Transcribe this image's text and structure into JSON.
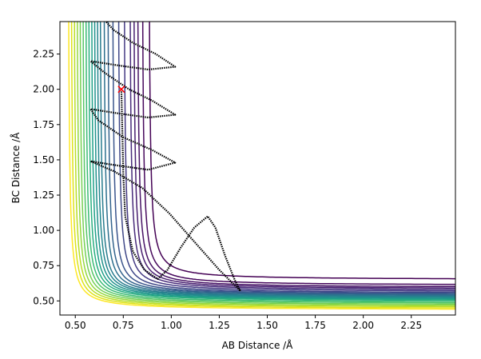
{
  "chart_data": {
    "type": "contour",
    "title": "",
    "xlabel": "AB Distance /Å",
    "ylabel": "BC Distance /Å",
    "xlim": [
      0.42,
      2.48
    ],
    "ylim": [
      0.4,
      2.48
    ],
    "xticks": [
      0.5,
      0.75,
      1.0,
      1.25,
      1.5,
      1.75,
      2.0,
      2.25
    ],
    "xtick_labels": [
      "0.50",
      "0.75",
      "1.00",
      "1.25",
      "1.50",
      "1.75",
      "2.00",
      "2.25"
    ],
    "yticks": [
      0.5,
      0.75,
      1.0,
      1.25,
      1.5,
      1.75,
      2.0,
      2.25
    ],
    "ytick_labels": [
      "0.50",
      "0.75",
      "1.00",
      "1.25",
      "1.50",
      "1.75",
      "2.00",
      "2.25"
    ],
    "contours": [
      {
        "name": "level-01",
        "color": "#440154",
        "xa": 0.88,
        "ya": 0.65
      },
      {
        "name": "level-02",
        "color": "#46085c",
        "xa": 0.845,
        "ya": 0.61
      },
      {
        "name": "level-03",
        "color": "#471365",
        "xa": 0.82,
        "ya": 0.595
      },
      {
        "name": "level-04",
        "color": "#481f70",
        "xa": 0.8,
        "ya": 0.585
      },
      {
        "name": "level-05",
        "color": "#472a7a",
        "xa": 0.78,
        "ya": 0.575
      },
      {
        "name": "level-06",
        "color": "#443983",
        "xa": 0.75,
        "ya": 0.565
      },
      {
        "name": "level-07",
        "color": "#3f4788",
        "xa": 0.72,
        "ya": 0.555
      },
      {
        "name": "level-08",
        "color": "#3a548c",
        "xa": 0.69,
        "ya": 0.547
      },
      {
        "name": "level-09",
        "color": "#33638d",
        "xa": 0.665,
        "ya": 0.54
      },
      {
        "name": "level-10",
        "color": "#2d708e",
        "xa": 0.645,
        "ya": 0.533
      },
      {
        "name": "level-11",
        "color": "#287c8e",
        "xa": 0.625,
        "ya": 0.526
      },
      {
        "name": "level-12",
        "color": "#24868e",
        "xa": 0.61,
        "ya": 0.52
      },
      {
        "name": "level-13",
        "color": "#20928c",
        "xa": 0.595,
        "ya": 0.513
      },
      {
        "name": "level-14",
        "color": "#1fa088",
        "xa": 0.58,
        "ya": 0.506
      },
      {
        "name": "level-15",
        "color": "#28ae80",
        "xa": 0.565,
        "ya": 0.499
      },
      {
        "name": "level-16",
        "color": "#3bbb75",
        "xa": 0.55,
        "ya": 0.49
      },
      {
        "name": "level-17",
        "color": "#56c667",
        "xa": 0.535,
        "ya": 0.481
      },
      {
        "name": "level-18",
        "color": "#75d054",
        "xa": 0.52,
        "ya": 0.472
      },
      {
        "name": "level-19",
        "color": "#95d840",
        "xa": 0.505,
        "ya": 0.463
      },
      {
        "name": "level-20",
        "color": "#bade28",
        "xa": 0.49,
        "ya": 0.454
      },
      {
        "name": "level-21",
        "color": "#dde318",
        "xa": 0.475,
        "ya": 0.445
      },
      {
        "name": "level-22",
        "color": "#fde725",
        "xa": 0.46,
        "ya": 0.436
      }
    ],
    "trajectory": {
      "color": "#000000",
      "start_marker": {
        "symbol": "x",
        "color": "#ff0000",
        "x": 0.74,
        "y": 2.0
      },
      "points": [
        [
          0.74,
          2.0
        ],
        [
          0.745,
          1.7
        ],
        [
          0.75,
          1.4
        ],
        [
          0.76,
          1.1
        ],
        [
          0.8,
          0.85
        ],
        [
          0.86,
          0.72
        ],
        [
          0.93,
          0.655
        ],
        [
          0.98,
          0.72
        ],
        [
          1.05,
          0.88
        ],
        [
          1.12,
          1.02
        ],
        [
          1.19,
          1.1
        ],
        [
          1.23,
          1.02
        ],
        [
          1.28,
          0.82
        ],
        [
          1.33,
          0.65
        ],
        [
          1.36,
          0.57
        ],
        [
          1.25,
          0.72
        ],
        [
          1.12,
          0.92
        ],
        [
          0.99,
          1.12
        ],
        [
          0.85,
          1.3
        ],
        [
          0.7,
          1.42
        ],
        [
          0.58,
          1.49
        ],
        [
          0.72,
          1.46
        ],
        [
          0.88,
          1.43
        ],
        [
          1.02,
          1.48
        ],
        [
          0.9,
          1.57
        ],
        [
          0.75,
          1.66
        ],
        [
          0.62,
          1.78
        ],
        [
          0.58,
          1.86
        ],
        [
          0.72,
          1.83
        ],
        [
          0.88,
          1.8
        ],
        [
          1.02,
          1.82
        ],
        [
          0.9,
          1.92
        ],
        [
          0.78,
          2.0
        ],
        [
          0.65,
          2.12
        ],
        [
          0.58,
          2.2
        ],
        [
          0.72,
          2.17
        ],
        [
          0.88,
          2.14
        ],
        [
          1.02,
          2.16
        ],
        [
          0.92,
          2.25
        ],
        [
          0.8,
          2.33
        ],
        [
          0.7,
          2.42
        ],
        [
          0.66,
          2.48
        ]
      ]
    }
  }
}
